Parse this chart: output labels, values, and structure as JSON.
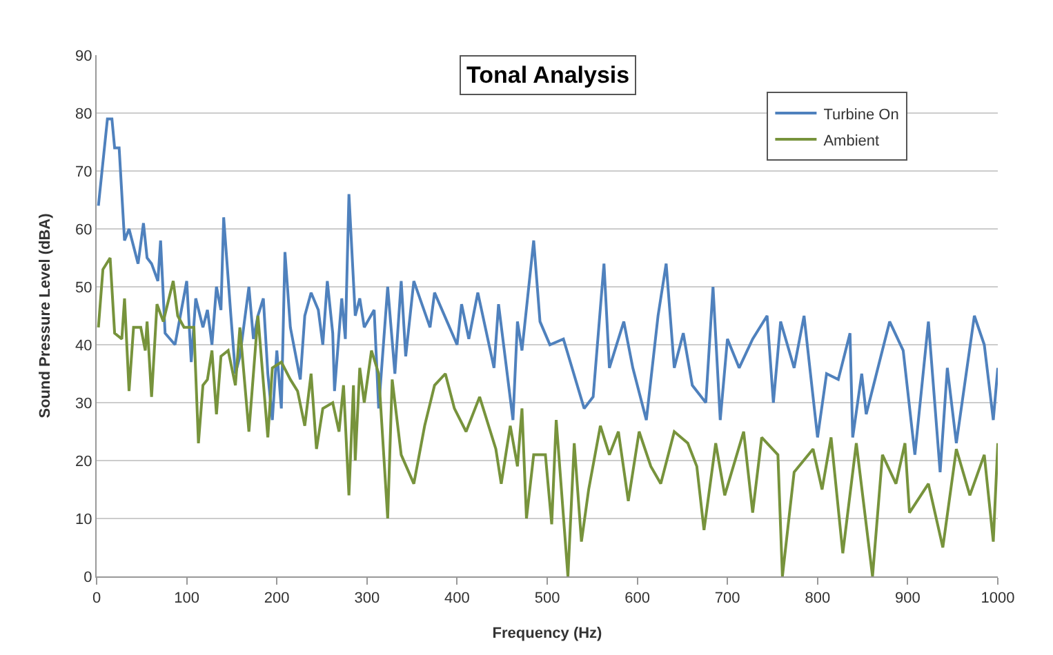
{
  "chart_data": {
    "type": "line",
    "title": "Tonal Analysis",
    "xlabel": "Frequency (Hz)",
    "ylabel": "Sound Pressure Level (dBA)",
    "xlim": [
      0,
      1000
    ],
    "xticks": [
      0,
      100,
      200,
      300,
      400,
      500,
      600,
      700,
      800,
      900,
      1000
    ],
    "ylim": [
      0,
      90
    ],
    "yticks": [
      0,
      10,
      20,
      30,
      40,
      50,
      60,
      70,
      80,
      90
    ],
    "grid": "y",
    "legend": "top right",
    "marker": "none",
    "line_style": "solid",
    "series": [
      {
        "name": "Turbine On",
        "color": "#4f81bd",
        "x": [
          2,
          12,
          17,
          20,
          25,
          31,
          36,
          46,
          52,
          56,
          61,
          68,
          71,
          76,
          87,
          100,
          105,
          110,
          118,
          123,
          128,
          133,
          138,
          141,
          149,
          154,
          159,
          169,
          174,
          179,
          185,
          190,
          195,
          200,
          205,
          209,
          215,
          226,
          231,
          238,
          246,
          251,
          256,
          262,
          264,
          272,
          276,
          280,
          287,
          292,
          297,
          308,
          313,
          323,
          331,
          338,
          343,
          352,
          370,
          375,
          400,
          405,
          413,
          423,
          441,
          446,
          462,
          467,
          472,
          485,
          492,
          503,
          518,
          541,
          551,
          563,
          569,
          585,
          595,
          610,
          623,
          632,
          641,
          651,
          661,
          676,
          684,
          692,
          700,
          713,
          728,
          744,
          751,
          759,
          774,
          785,
          800,
          810,
          823,
          836,
          839,
          849,
          854,
          867,
          880,
          895,
          908,
          923,
          936,
          944,
          954,
          974,
          985,
          995,
          1000
        ],
        "values": [
          64,
          79,
          79,
          74,
          74,
          58,
          60,
          54,
          61,
          55,
          54,
          51,
          58,
          42,
          40,
          51,
          37,
          48,
          43,
          46,
          40,
          50,
          46,
          62,
          45,
          35,
          38,
          50,
          41,
          45,
          48,
          35,
          27,
          39,
          29,
          56,
          43,
          34,
          45,
          49,
          46,
          40,
          51,
          42,
          32,
          48,
          41,
          66,
          45,
          48,
          43,
          46,
          29,
          50,
          35,
          51,
          38,
          51,
          43,
          49,
          40,
          47,
          41,
          49,
          36,
          47,
          27,
          44,
          39,
          58,
          44,
          40,
          41,
          29,
          31,
          54,
          36,
          44,
          36,
          27,
          45,
          54,
          36,
          42,
          33,
          30,
          50,
          27,
          41,
          36,
          41,
          45,
          30,
          44,
          36,
          45,
          24,
          35,
          34,
          42,
          24,
          35,
          28,
          36,
          44,
          39,
          21,
          44,
          18,
          36,
          23,
          45,
          40,
          27,
          36
        ]
      },
      {
        "name": "Ambient",
        "color": "#77933c",
        "x": [
          2,
          7,
          15,
          20,
          28,
          31,
          36,
          41,
          49,
          54,
          56,
          61,
          67,
          74,
          85,
          90,
          97,
          108,
          113,
          118,
          123,
          128,
          133,
          138,
          146,
          154,
          159,
          169,
          179,
          190,
          195,
          205,
          215,
          223,
          231,
          238,
          244,
          251,
          262,
          269,
          274,
          280,
          285,
          287,
          292,
          297,
          305,
          313,
          323,
          328,
          338,
          352,
          364,
          375,
          387,
          397,
          410,
          425,
          443,
          449,
          459,
          467,
          472,
          477,
          485,
          498,
          505,
          510,
          523,
          530,
          538,
          546,
          559,
          569,
          579,
          590,
          602,
          615,
          626,
          641,
          656,
          666,
          674,
          687,
          697,
          718,
          728,
          738,
          756,
          761,
          774,
          795,
          805,
          815,
          828,
          843,
          861,
          872,
          887,
          897,
          902,
          923,
          939,
          954,
          969,
          985,
          995,
          1000
        ],
        "values": [
          43,
          53,
          55,
          42,
          41,
          48,
          32,
          43,
          43,
          39,
          44,
          31,
          47,
          44,
          51,
          45,
          43,
          43,
          23,
          33,
          34,
          39,
          28,
          38,
          39,
          33,
          43,
          25,
          45,
          24,
          36,
          37,
          34,
          32,
          26,
          35,
          22,
          29,
          30,
          25,
          33,
          14,
          33,
          20,
          36,
          30,
          39,
          35,
          10,
          34,
          21,
          16,
          26,
          33,
          35,
          29,
          25,
          31,
          22,
          16,
          26,
          19,
          29,
          10,
          21,
          21,
          9,
          27,
          0,
          23,
          6,
          15,
          26,
          21,
          25,
          13,
          25,
          19,
          16,
          25,
          23,
          19,
          8,
          23,
          14,
          25,
          11,
          24,
          21,
          0,
          18,
          22,
          15,
          24,
          4,
          23,
          0,
          21,
          16,
          23,
          11,
          16,
          5,
          22,
          14,
          21,
          6,
          23
        ]
      }
    ]
  }
}
